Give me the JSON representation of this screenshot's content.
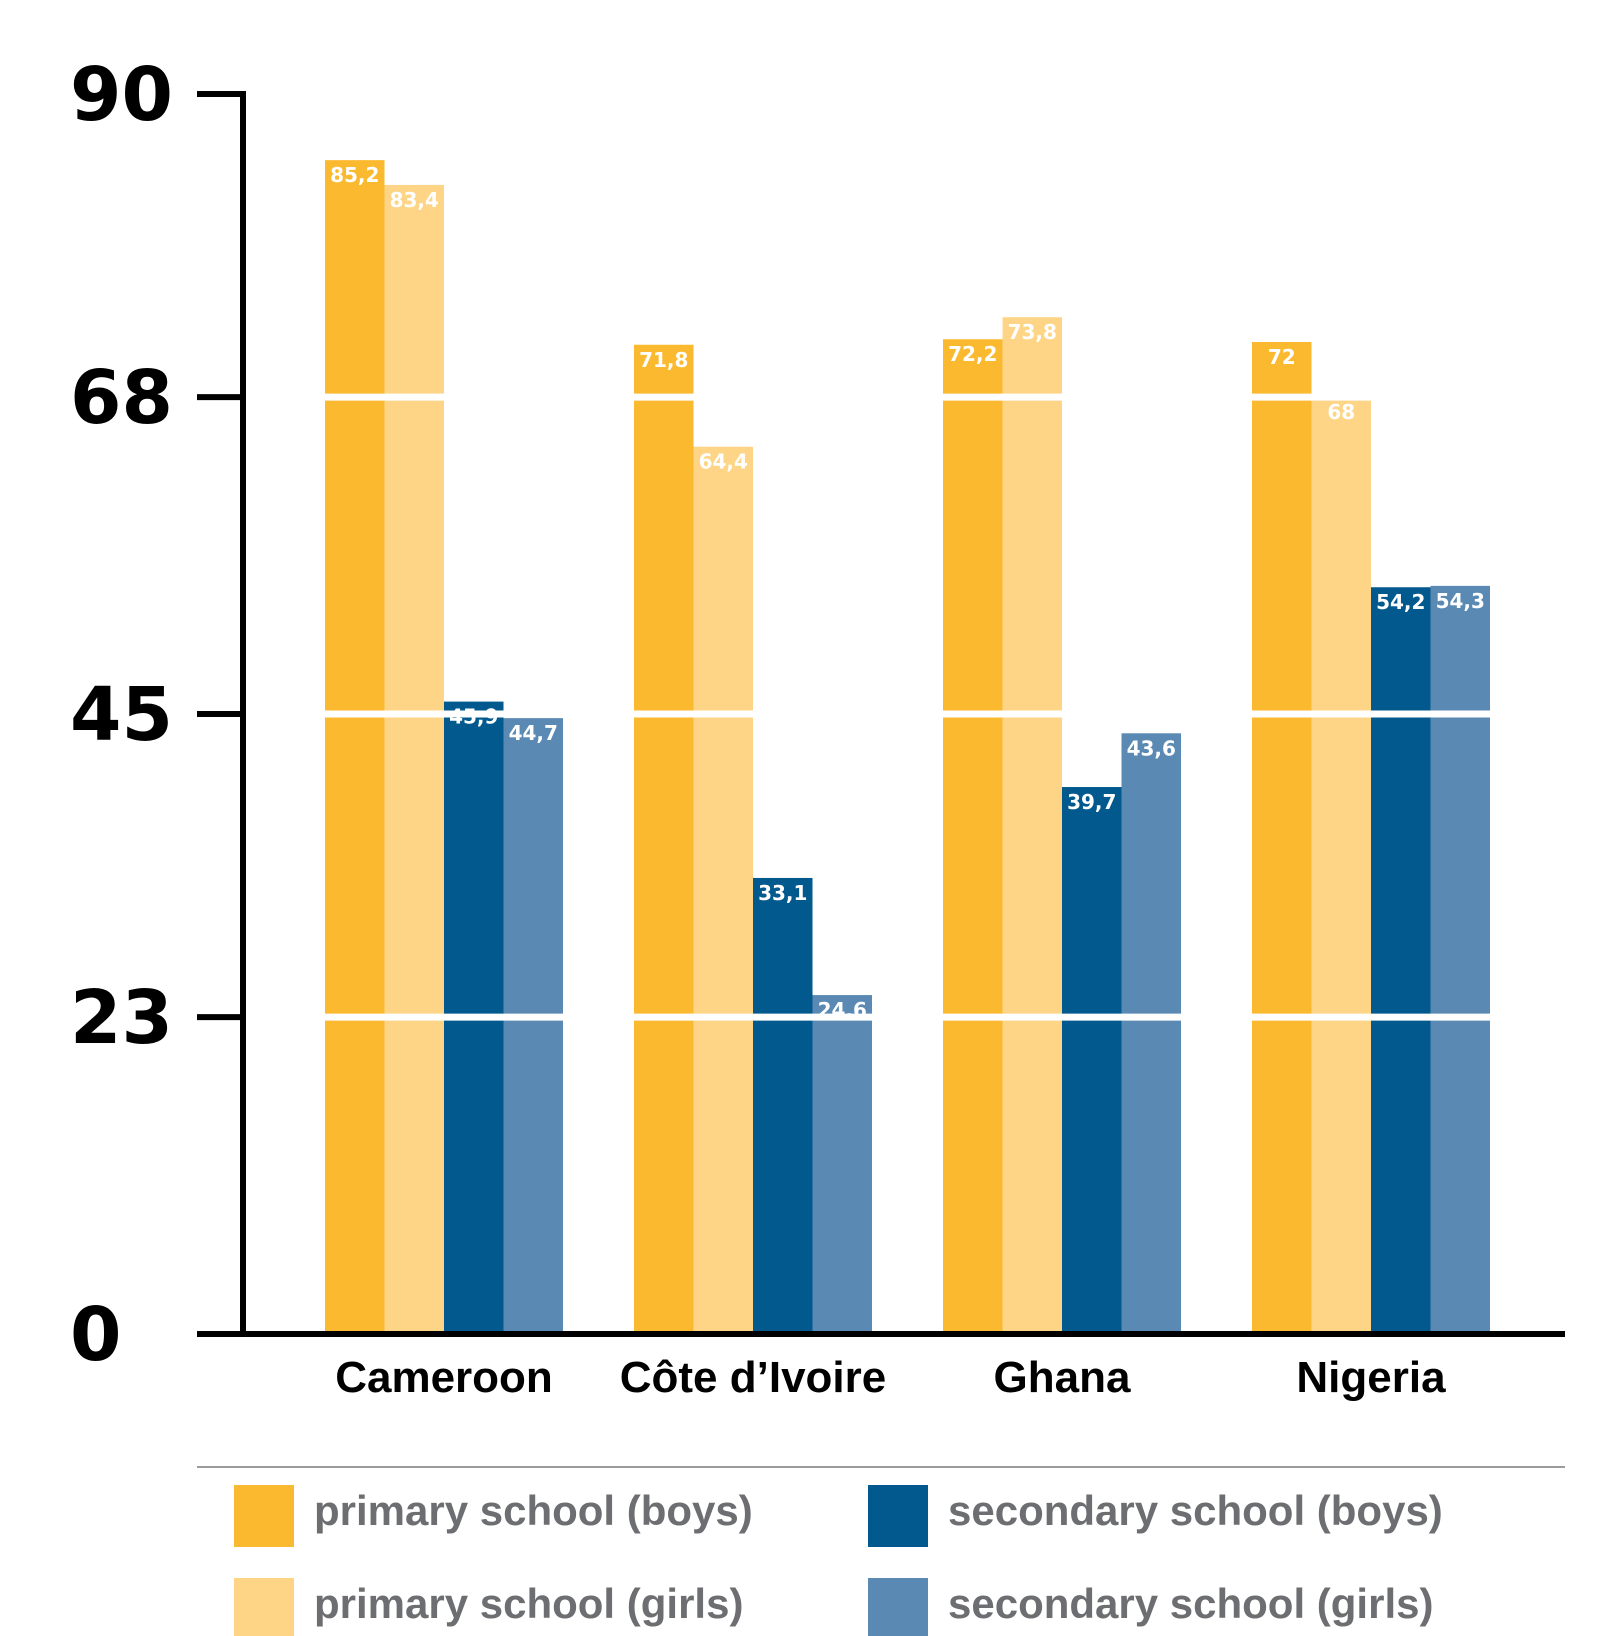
{
  "chart_data": {
    "type": "bar",
    "categories": [
      "Cameroon",
      "Côte d’Ivoire",
      "Ghana",
      "Nigeria"
    ],
    "series": [
      {
        "name": "primary school (boys)",
        "color": "#fbb930",
        "values": [
          85.2,
          71.8,
          72.2,
          72
        ],
        "labels": [
          "85,2",
          "71,8",
          "72,2",
          "72"
        ]
      },
      {
        "name": "primary school (girls)",
        "color": "#fed587",
        "values": [
          83.4,
          64.4,
          73.8,
          68
        ],
        "labels": [
          "83,4",
          "64,4",
          "73,8",
          "68"
        ]
      },
      {
        "name": "secondary school (boys)",
        "color": "#02598e",
        "values": [
          45.9,
          33.1,
          39.7,
          54.2
        ],
        "labels": [
          "45,9",
          "33,1",
          "39,7",
          "54,2"
        ]
      },
      {
        "name": "secondary school (girls)",
        "color": "#5a8ab4",
        "values": [
          44.7,
          24.6,
          43.6,
          54.3
        ],
        "labels": [
          "44,7",
          "24,6",
          "43,6",
          "54,3"
        ]
      }
    ],
    "yticks": [
      0,
      23,
      45,
      68,
      90
    ],
    "ytick_labels": [
      "0",
      "23",
      "45",
      "68",
      "90"
    ],
    "ylim": [
      0,
      90
    ],
    "grid": false,
    "legend_position": "bottom"
  }
}
